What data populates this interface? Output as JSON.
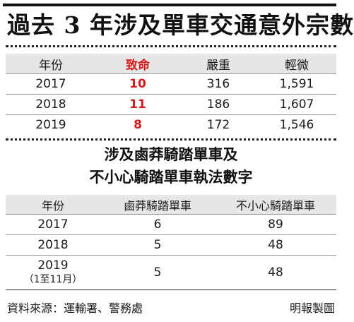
{
  "title": "過去 3 年涉及單車交通意外宗數",
  "table1": {
    "headers": [
      "年份",
      "致命",
      "嚴重",
      "輕微"
    ],
    "rows": [
      [
        "2017",
        "10",
        "316",
        "1,591"
      ],
      [
        "2018",
        "11",
        "186",
        "1,607"
      ],
      [
        "2019",
        "8",
        "172",
        "1,546"
      ]
    ]
  },
  "subtitle": {
    "line1": "涉及鹵莽騎踏單車及",
    "line2": "不小心騎踏單車執法數字"
  },
  "table2": {
    "headers": [
      "年份",
      "鹵莽騎踏單車",
      "不小心騎踏單車"
    ],
    "rows": [
      [
        "2017",
        "6",
        "89"
      ],
      [
        "2018",
        "5",
        "48"
      ]
    ],
    "last_row": {
      "year": "2019",
      "note": "（1至11月）",
      "reckless": "5",
      "careless": "48"
    }
  },
  "footer": {
    "source": "資料來源：運輸署、警務處",
    "credit": "明報製圖"
  },
  "colors": {
    "fatal": "#d61a1a",
    "header_bg": "#e6e6e6"
  }
}
